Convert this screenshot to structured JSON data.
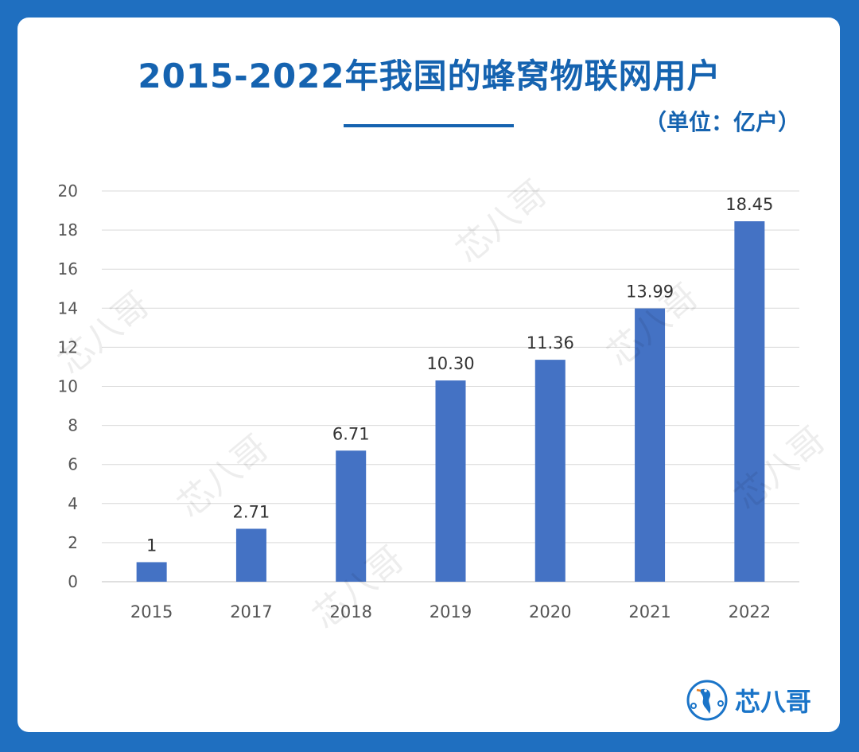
{
  "header": {
    "title": "2015-2022年我国的蜂窝物联网用户",
    "unit": "（单位：亿户）"
  },
  "brand": {
    "logo_text": "芯八哥",
    "watermark": "芯八哥"
  },
  "colors": {
    "background": "#1f6fc0",
    "bar": "#4472c4",
    "title": "#1563b0"
  },
  "chart_data": {
    "type": "bar",
    "categories": [
      "2015",
      "2017",
      "2018",
      "2019",
      "2020",
      "2021",
      "2022"
    ],
    "values": [
      1,
      2.71,
      6.71,
      10.3,
      11.36,
      13.99,
      18.45
    ],
    "data_labels": [
      "1",
      "2.71",
      "6.71",
      "10.30",
      "11.36",
      "13.99",
      "18.45"
    ],
    "ylim": [
      0,
      20
    ],
    "yticks": [
      0,
      2,
      4,
      6,
      8,
      10,
      12,
      14,
      16,
      18,
      20
    ],
    "grid": true,
    "legend": "none"
  }
}
